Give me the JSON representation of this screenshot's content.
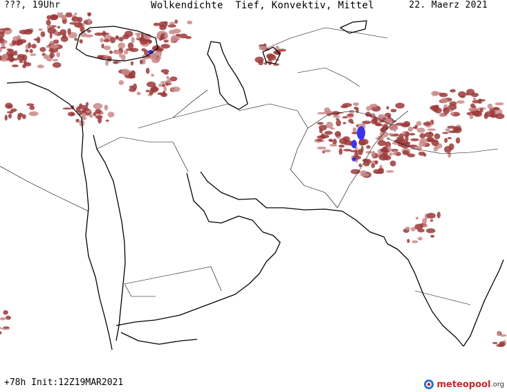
{
  "header": {
    "valid_time": "???, 19Uhr",
    "title": "Wolkendichte  Tief, Konvektiv, Mittel",
    "date": "22. Maerz 2021"
  },
  "footer": {
    "run_info": "+78h Init:12Z19MAR2021"
  },
  "brand": {
    "name": "meteopool",
    "tld": ".org",
    "icon": "meteopool-logo-icon"
  },
  "map": {
    "region": "Middle East / South Asia",
    "field": "cloud density low convective mid",
    "colors": {
      "background": "#ffffff",
      "coastline": "#000000",
      "border": "#000000",
      "cloud_density": "#9c3a3a",
      "cloud_density_light": "#c98a8a",
      "cloud_density_max": "#3b35e8"
    }
  }
}
